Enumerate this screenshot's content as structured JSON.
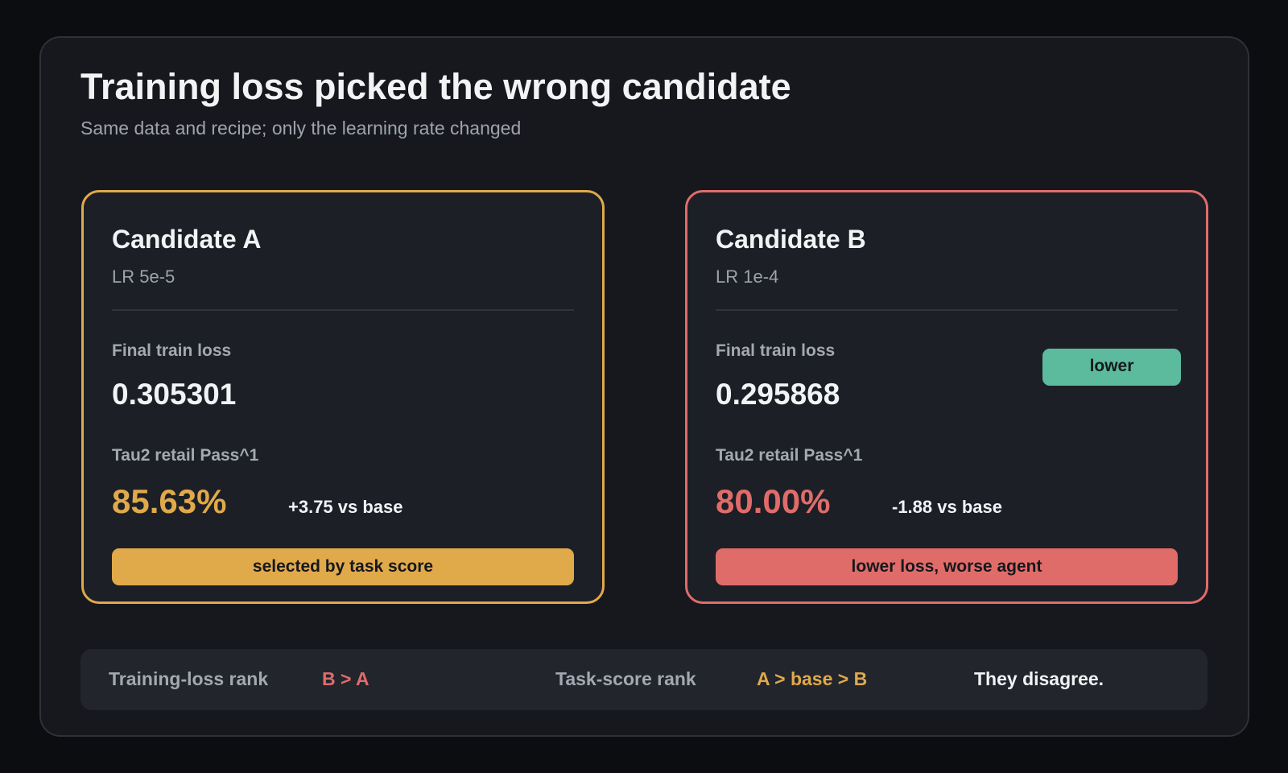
{
  "header": {
    "title": "Training loss picked the wrong candidate",
    "subtitle": "Same data and recipe; only the learning rate changed"
  },
  "candidates": [
    {
      "name": "Candidate A",
      "lr": "LR 5e-5",
      "loss_label": "Final train loss",
      "loss": "0.305301",
      "score_label": "Tau2 retail Pass^1",
      "score": "85.63%",
      "delta": "+3.75 vs base",
      "verdict": "selected by task score"
    },
    {
      "name": "Candidate B",
      "lr": "LR 1e-4",
      "loss_label": "Final train loss",
      "loss": "0.295868",
      "loss_tag": "lower",
      "score_label": "Tau2 retail Pass^1",
      "score": "80.00%",
      "delta": "-1.88 vs base",
      "verdict": "lower loss, worse agent"
    }
  ],
  "summary": {
    "loss_rank_label": "Training-loss rank",
    "loss_rank": "B > A",
    "task_rank_label": "Task-score rank",
    "task_rank": "A > base > B",
    "conclusion": "They disagree."
  }
}
